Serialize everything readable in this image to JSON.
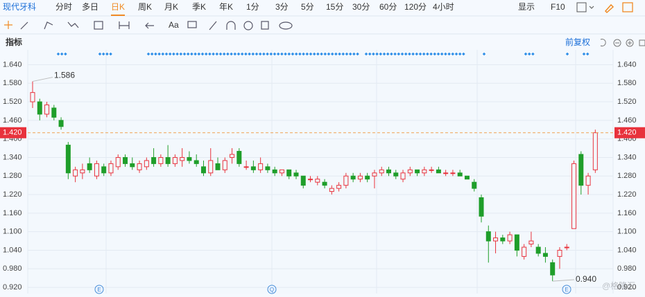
{
  "toolbar": {
    "tabs": [
      "现代牙科",
      "分时",
      "多日",
      "日K",
      "周K",
      "月K",
      "季K",
      "年K",
      "1分",
      "3分",
      "5分",
      "15分",
      "30分",
      "60分",
      "120分",
      "4小时"
    ],
    "active": "日K",
    "display": "显示",
    "f10": "F10",
    "font_tool": "Aa"
  },
  "indicator_label": "指标",
  "adjust_label": "前复权",
  "watermark": "@格隆汇",
  "chart_data": {
    "type": "candlestick",
    "open": [
      1.52,
      1.52,
      1.48,
      1.5,
      1.46,
      1.38,
      1.28,
      1.29,
      1.32,
      1.28,
      1.31,
      1.29,
      1.31,
      1.34,
      1.32,
      1.3,
      1.31,
      1.34,
      1.32,
      1.34,
      1.32,
      1.33,
      1.34,
      1.33,
      1.31,
      1.29,
      1.32,
      1.3,
      1.34,
      1.36,
      1.31,
      1.31,
      1.3,
      1.31,
      1.3,
      1.29,
      1.3,
      1.29,
      1.28,
      1.27,
      1.26,
      1.26,
      1.23,
      1.24,
      1.25,
      1.28,
      1.27,
      1.28,
      1.28,
      1.29,
      1.3,
      1.29,
      1.27,
      1.29,
      1.3,
      1.29,
      1.3,
      1.3,
      1.29,
      1.29,
      1.29,
      1.28,
      1.26,
      1.21,
      1.1,
      1.07,
      1.08,
      1.07,
      1.09,
      1.02,
      1.06,
      1.05,
      1.03,
      1.0,
      1.02,
      1.05,
      1.11,
      1.35,
      1.25,
      1.3
    ],
    "high": [
      1.586,
      1.53,
      1.52,
      1.51,
      1.47,
      1.39,
      1.31,
      1.32,
      1.34,
      1.33,
      1.32,
      1.33,
      1.35,
      1.35,
      1.34,
      1.33,
      1.34,
      1.37,
      1.35,
      1.38,
      1.35,
      1.37,
      1.36,
      1.35,
      1.33,
      1.37,
      1.34,
      1.34,
      1.37,
      1.37,
      1.33,
      1.33,
      1.34,
      1.32,
      1.31,
      1.3,
      1.3,
      1.3,
      1.28,
      1.28,
      1.28,
      1.27,
      1.25,
      1.26,
      1.29,
      1.29,
      1.29,
      1.29,
      1.3,
      1.31,
      1.31,
      1.3,
      1.3,
      1.31,
      1.3,
      1.31,
      1.31,
      1.31,
      1.3,
      1.3,
      1.3,
      1.28,
      1.27,
      1.22,
      1.12,
      1.1,
      1.09,
      1.1,
      1.09,
      1.06,
      1.1,
      1.06,
      1.05,
      1.01,
      1.05,
      1.06,
      1.33,
      1.36,
      1.29,
      1.43
    ],
    "low": [
      1.5,
      1.46,
      1.47,
      1.46,
      1.43,
      1.27,
      1.26,
      1.27,
      1.29,
      1.27,
      1.28,
      1.28,
      1.3,
      1.31,
      1.3,
      1.29,
      1.3,
      1.31,
      1.31,
      1.31,
      1.31,
      1.31,
      1.32,
      1.31,
      1.28,
      1.28,
      1.3,
      1.29,
      1.32,
      1.31,
      1.3,
      1.29,
      1.29,
      1.29,
      1.28,
      1.28,
      1.27,
      1.27,
      1.24,
      1.26,
      1.25,
      1.24,
      1.22,
      1.23,
      1.24,
      1.26,
      1.26,
      1.26,
      1.24,
      1.28,
      1.28,
      1.27,
      1.26,
      1.28,
      1.28,
      1.28,
      1.29,
      1.29,
      1.28,
      1.28,
      1.28,
      1.27,
      1.23,
      1.13,
      1.0,
      1.03,
      1.06,
      1.06,
      1.02,
      1.01,
      1.05,
      1.02,
      1.0,
      0.94,
      0.98,
      1.04,
      1.11,
      1.22,
      1.22,
      1.29
    ],
    "close": [
      1.55,
      1.48,
      1.51,
      1.47,
      1.44,
      1.29,
      1.3,
      1.3,
      1.3,
      1.32,
      1.29,
      1.32,
      1.34,
      1.32,
      1.31,
      1.32,
      1.33,
      1.32,
      1.34,
      1.32,
      1.34,
      1.34,
      1.33,
      1.32,
      1.29,
      1.33,
      1.3,
      1.33,
      1.35,
      1.32,
      1.31,
      1.3,
      1.32,
      1.3,
      1.29,
      1.3,
      1.28,
      1.28,
      1.25,
      1.27,
      1.27,
      1.25,
      1.24,
      1.25,
      1.28,
      1.27,
      1.28,
      1.27,
      1.29,
      1.3,
      1.29,
      1.28,
      1.29,
      1.3,
      1.29,
      1.3,
      1.3,
      1.29,
      1.29,
      1.29,
      1.28,
      1.27,
      1.24,
      1.15,
      1.07,
      1.08,
      1.07,
      1.09,
      1.04,
      1.05,
      1.07,
      1.03,
      1.02,
      0.96,
      1.04,
      1.05,
      1.32,
      1.25,
      1.28,
      1.42
    ],
    "up_color": "#e8323c",
    "down_color": "#1f9e2a",
    "ylim": [
      0.9,
      1.688
    ],
    "yticks": [
      {
        "value": 0.92,
        "label": "0.920"
      },
      {
        "value": 0.98,
        "label": "0.980"
      },
      {
        "value": 1.04,
        "label": "1.040"
      },
      {
        "value": 1.1,
        "label": "1.100"
      },
      {
        "value": 1.16,
        "label": "1.160"
      },
      {
        "value": 1.22,
        "label": "1.220"
      },
      {
        "value": 1.28,
        "label": "1.280"
      },
      {
        "value": 1.34,
        "label": "1.340"
      },
      {
        "value": 1.4,
        "label": "1.400"
      },
      {
        "value": 1.46,
        "label": "1.460"
      },
      {
        "value": 1.52,
        "label": "1.520"
      },
      {
        "value": 1.58,
        "label": "1.580"
      },
      {
        "value": 1.64,
        "label": "1.640"
      }
    ],
    "grid": true,
    "last_price": {
      "value": 1.42,
      "label": "1.420"
    },
    "max_marker": {
      "value": 1.586,
      "label": "1.586"
    },
    "min_marker": {
      "value": 0.94,
      "label": "0.940"
    },
    "events": [
      "E",
      "Q",
      "E"
    ]
  }
}
